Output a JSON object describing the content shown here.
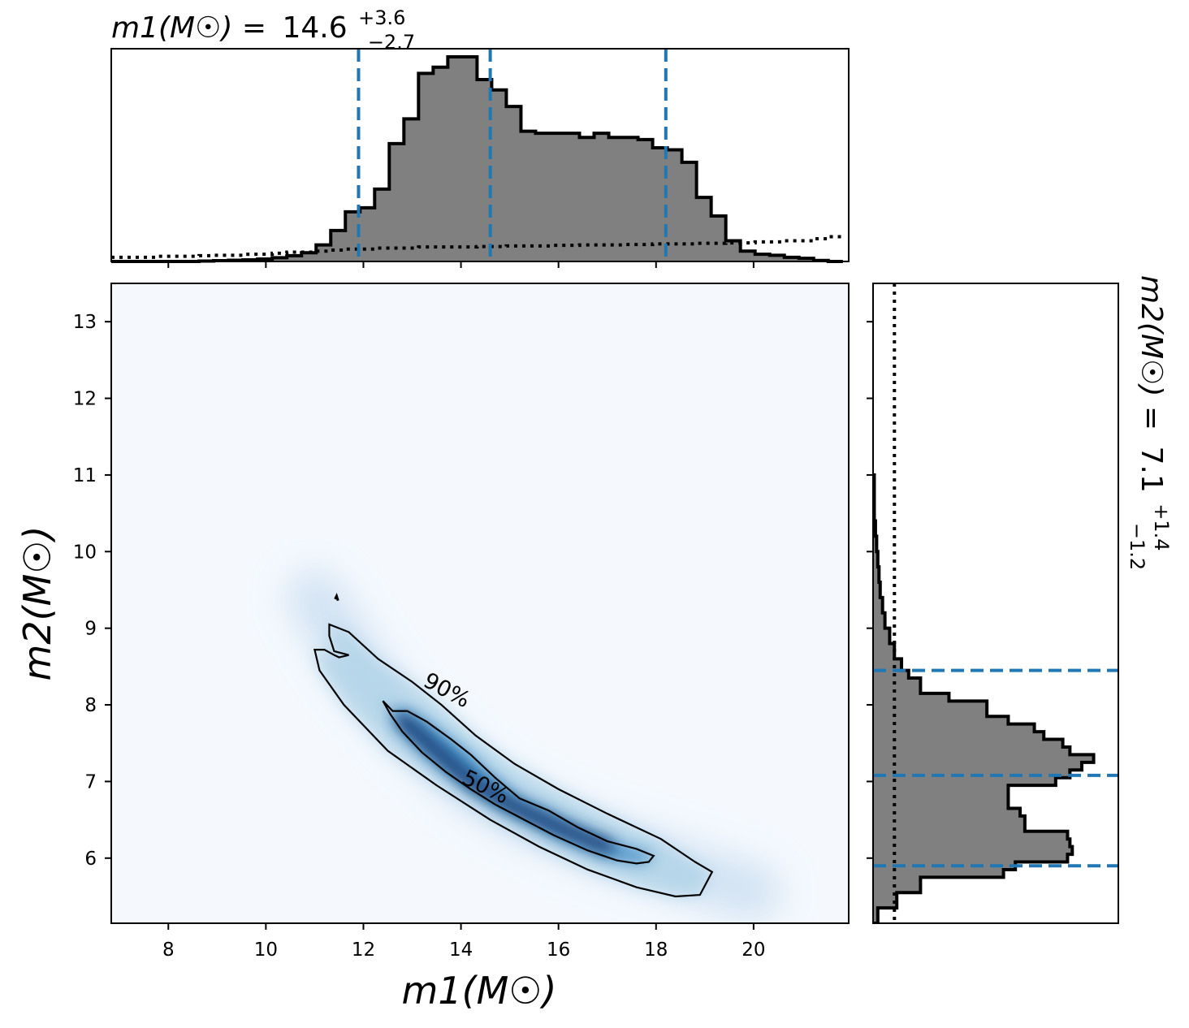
{
  "top_title": {
    "label": "m1(M☉) =",
    "value": "14.6",
    "upper": "+3.6",
    "lower": "−2.7"
  },
  "right_title": {
    "label": "m2(M☉) =",
    "value": "7.1",
    "upper": "+1.4",
    "lower": "−1.2"
  },
  "xlabel": "m1(M☉)",
  "ylabel": "m2(M☉)",
  "colors": {
    "hist_fill": "#808080",
    "hist_edge": "#000000",
    "quantile_line": "#1f77b4",
    "density_low": "#f5f9fe",
    "density_high": "#08306b"
  },
  "chart_data": [
    {
      "type": "step-histogram",
      "name": "m1 marginal",
      "xlim": [
        6.83,
        21.95
      ],
      "ticks": [
        "8",
        "10",
        "12",
        "14",
        "16",
        "18",
        "20"
      ],
      "tick_values": [
        8,
        10,
        12,
        14,
        16,
        18,
        20
      ],
      "bin_edges": [
        6.83,
        7.13,
        7.43,
        7.73,
        8.03,
        8.33,
        8.63,
        8.93,
        9.23,
        9.53,
        9.83,
        10.13,
        10.43,
        10.73,
        11.03,
        11.33,
        11.63,
        11.93,
        12.23,
        12.53,
        12.83,
        13.13,
        13.43,
        13.73,
        14.03,
        14.33,
        14.63,
        14.93,
        15.23,
        15.53,
        15.83,
        16.13,
        16.43,
        16.73,
        17.03,
        17.33,
        17.63,
        17.93,
        18.23,
        18.53,
        18.83,
        19.13,
        19.43,
        19.73,
        20.03,
        20.33,
        20.63,
        20.93,
        21.23,
        21.53,
        21.83
      ],
      "counts": [
        0,
        0,
        0,
        0,
        0,
        0,
        0.002,
        0.004,
        0.006,
        0.008,
        0.012,
        0.018,
        0.028,
        0.042,
        0.08,
        0.15,
        0.24,
        0.26,
        0.35,
        0.57,
        0.69,
        0.91,
        0.94,
        0.99,
        0.99,
        0.88,
        0.83,
        0.75,
        0.63,
        0.62,
        0.62,
        0.62,
        0.6,
        0.62,
        0.6,
        0.6,
        0.59,
        0.55,
        0.54,
        0.48,
        0.31,
        0.22,
        0.1,
        0.05,
        0.035,
        0.03,
        0.02,
        0.015,
        0.005,
        0
      ],
      "prior_counts": [
        0.02,
        0.02,
        0.02,
        0.025,
        0.025,
        0.025,
        0.028,
        0.03,
        0.03,
        0.035,
        0.035,
        0.04,
        0.045,
        0.045,
        0.05,
        0.055,
        0.06,
        0.06,
        0.065,
        0.065,
        0.065,
        0.07,
        0.07,
        0.07,
        0.07,
        0.072,
        0.072,
        0.075,
        0.075,
        0.075,
        0.078,
        0.078,
        0.08,
        0.08,
        0.08,
        0.082,
        0.082,
        0.085,
        0.085,
        0.085,
        0.088,
        0.088,
        0.09,
        0.09,
        0.095,
        0.095,
        0.1,
        0.1,
        0.11,
        0.12
      ],
      "quantiles": [
        11.9,
        14.6,
        18.2
      ]
    },
    {
      "type": "heatmap",
      "name": "joint density",
      "xlim": [
        6.83,
        21.95
      ],
      "ylim": [
        5.15,
        13.5
      ],
      "x_ticks": [
        "8",
        "10",
        "12",
        "14",
        "16",
        "18",
        "20"
      ],
      "x_tick_values": [
        8,
        10,
        12,
        14,
        16,
        18,
        20
      ],
      "y_ticks": [
        "6",
        "7",
        "8",
        "9",
        "10",
        "11",
        "12",
        "13"
      ],
      "y_tick_values": [
        6,
        7,
        8,
        9,
        10,
        11,
        12,
        13
      ],
      "density_ridge": [
        [
          11.0,
          9.4
        ],
        [
          12.0,
          8.4
        ],
        [
          12.8,
          7.8
        ],
        [
          13.5,
          7.4
        ],
        [
          14.2,
          7.0
        ],
        [
          15.0,
          6.7
        ],
        [
          16.0,
          6.4
        ],
        [
          17.0,
          6.15
        ],
        [
          18.0,
          5.95
        ],
        [
          19.0,
          5.75
        ],
        [
          20.0,
          5.55
        ]
      ],
      "contour_50": [
        [
          12.4,
          8.05
        ],
        [
          12.6,
          7.92
        ],
        [
          12.9,
          7.92
        ],
        [
          13.3,
          7.78
        ],
        [
          13.8,
          7.55
        ],
        [
          14.2,
          7.35
        ],
        [
          14.7,
          7.05
        ],
        [
          15.2,
          6.78
        ],
        [
          15.8,
          6.62
        ],
        [
          16.4,
          6.4
        ],
        [
          17.0,
          6.22
        ],
        [
          17.6,
          6.12
        ],
        [
          17.95,
          6.03
        ],
        [
          17.85,
          5.95
        ],
        [
          17.6,
          5.93
        ],
        [
          17.2,
          5.97
        ],
        [
          16.6,
          6.1
        ],
        [
          15.9,
          6.3
        ],
        [
          15.3,
          6.5
        ],
        [
          14.7,
          6.7
        ],
        [
          14.2,
          6.9
        ],
        [
          13.7,
          7.12
        ],
        [
          13.2,
          7.38
        ],
        [
          12.8,
          7.65
        ],
        [
          12.55,
          7.88
        ],
        [
          12.4,
          8.05
        ]
      ],
      "contour_90": [
        [
          11.4,
          8.7
        ],
        [
          11.3,
          8.9
        ],
        [
          11.3,
          9.05
        ],
        [
          11.7,
          8.95
        ],
        [
          12.3,
          8.6
        ],
        [
          13.0,
          8.3
        ],
        [
          13.6,
          8.0
        ],
        [
          14.3,
          7.6
        ],
        [
          15.1,
          7.23
        ],
        [
          16.0,
          6.9
        ],
        [
          17.0,
          6.58
        ],
        [
          18.1,
          6.25
        ],
        [
          18.8,
          5.95
        ],
        [
          19.15,
          5.82
        ],
        [
          19.05,
          5.7
        ],
        [
          18.9,
          5.52
        ],
        [
          18.4,
          5.5
        ],
        [
          17.6,
          5.62
        ],
        [
          16.6,
          5.85
        ],
        [
          15.6,
          6.15
        ],
        [
          14.6,
          6.5
        ],
        [
          13.5,
          6.95
        ],
        [
          12.5,
          7.4
        ],
        [
          11.6,
          8.0
        ],
        [
          11.1,
          8.45
        ],
        [
          11.0,
          8.72
        ],
        [
          11.2,
          8.72
        ],
        [
          11.4,
          8.65
        ],
        [
          11.5,
          8.62
        ],
        [
          11.7,
          8.65
        ],
        [
          11.4,
          8.7
        ]
      ],
      "island_contour": [
        [
          11.42,
          9.38
        ],
        [
          11.45,
          9.42
        ],
        [
          11.48,
          9.36
        ]
      ],
      "contour_labels": [
        "90%",
        "50%"
      ]
    },
    {
      "type": "step-histogram",
      "name": "m2 marginal",
      "orientation": "horizontal",
      "ylim": [
        5.15,
        13.5
      ],
      "bin_edges": [
        5.15,
        5.35,
        5.55,
        5.75,
        5.85,
        5.95,
        6.05,
        6.15,
        6.25,
        6.35,
        6.45,
        6.55,
        6.65,
        6.75,
        6.85,
        6.95,
        7.05,
        7.15,
        7.25,
        7.35,
        7.45,
        7.55,
        7.65,
        7.75,
        7.85,
        7.95,
        8.05,
        8.15,
        8.25,
        8.35,
        8.45,
        8.6,
        8.8,
        9.0,
        9.2,
        9.4,
        9.6,
        9.8,
        10.0,
        10.2,
        10.4,
        11.0
      ],
      "counts": [
        0.02,
        0.1,
        0.2,
        0.55,
        0.6,
        0.82,
        0.84,
        0.83,
        0.82,
        0.64,
        0.64,
        0.62,
        0.57,
        0.57,
        0.57,
        0.77,
        0.83,
        0.88,
        0.93,
        0.83,
        0.8,
        0.72,
        0.68,
        0.57,
        0.48,
        0.48,
        0.32,
        0.2,
        0.2,
        0.15,
        0.12,
        0.09,
        0.07,
        0.05,
        0.04,
        0.03,
        0.025,
        0.02,
        0.015,
        0.01,
        0.005
      ],
      "prior_x": 0.09,
      "quantiles": [
        5.9,
        7.08,
        8.45
      ]
    }
  ]
}
